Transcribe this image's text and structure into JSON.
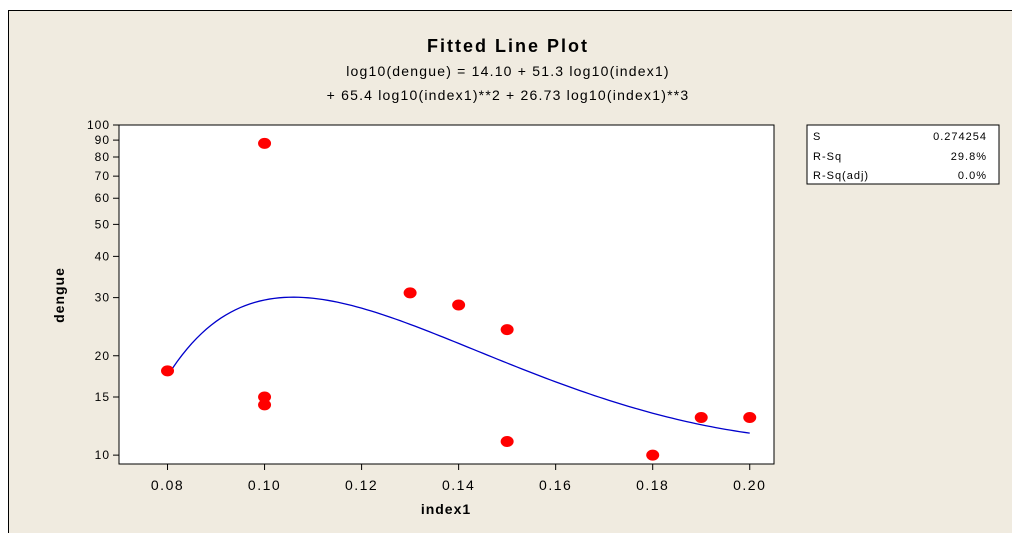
{
  "chart_data": {
    "type": "scatter",
    "title": "Fitted Line Plot",
    "equation_line1": "log10(dengue) =  14.10 + 51.3 log10(index1)",
    "equation_line2": "+ 65.4 log10(index1)**2 + 26.73 log10(index1)**3",
    "xlabel": "index1",
    "ylabel": "dengue",
    "xlim": [
      0.07,
      0.205
    ],
    "ylim": [
      9.4,
      100
    ],
    "yscale": "log",
    "x_ticks": [
      "0.08",
      "0.10",
      "0.12",
      "0.14",
      "0.16",
      "0.18",
      "0.20"
    ],
    "y_ticks": [
      "10",
      "15",
      "20",
      "30",
      "40",
      "50",
      "60",
      "70",
      "80",
      "90",
      "100"
    ],
    "series": [
      {
        "kind": "points",
        "color": "#ff0000",
        "points": [
          [
            0.08,
            18
          ],
          [
            0.1,
            88
          ],
          [
            0.1,
            15
          ],
          [
            0.1,
            14.2
          ],
          [
            0.13,
            31
          ],
          [
            0.14,
            28.5
          ],
          [
            0.15,
            24
          ],
          [
            0.15,
            11
          ],
          [
            0.18,
            10
          ],
          [
            0.19,
            13
          ],
          [
            0.2,
            13
          ]
        ]
      },
      {
        "kind": "fit",
        "color": "#0000cc",
        "coefficients": [
          14.1,
          51.3,
          65.4,
          26.73
        ],
        "x_range": [
          0.08,
          0.2
        ]
      }
    ],
    "stats": [
      {
        "label": "S",
        "value": "0.274254"
      },
      {
        "label": "R-Sq",
        "value": "29.8%"
      },
      {
        "label": "R-Sq(adj)",
        "value": "0.0%"
      }
    ],
    "grid": false
  }
}
